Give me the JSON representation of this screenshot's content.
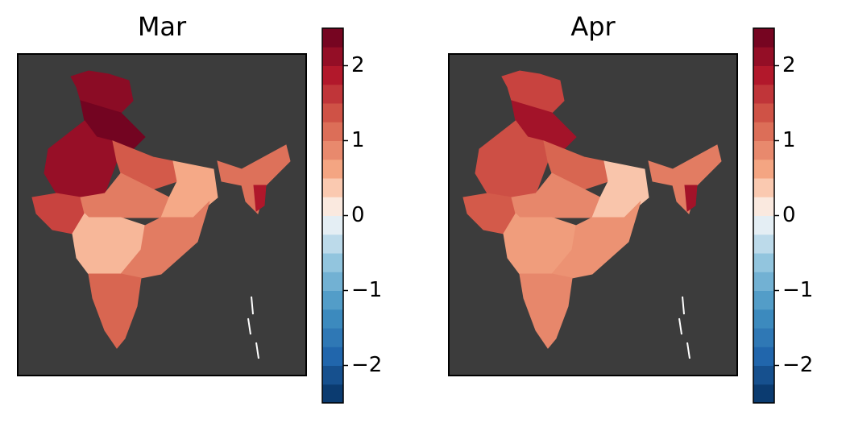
{
  "maps": [
    {
      "title": "Mar",
      "clim": [
        -2.5,
        2.5
      ],
      "ticks": [
        {
          "value": -2,
          "label": "−2"
        },
        {
          "value": -1,
          "label": "−1"
        },
        0,
        1,
        2
      ],
      "regions": [
        2.2,
        2.4,
        2.1,
        1.5,
        1.3,
        1.0,
        0.6,
        0.5,
        1.0,
        1.2,
        1.1,
        1.9
      ]
    },
    {
      "title": "Apr",
      "clim": [
        -2.5,
        2.5
      ],
      "ticks": [
        {
          "value": -2,
          "label": "−2"
        },
        {
          "value": -1,
          "label": "−1"
        },
        0,
        1,
        2
      ],
      "regions": [
        1.5,
        2.0,
        1.4,
        1.3,
        1.2,
        0.9,
        0.4,
        0.7,
        0.8,
        0.9,
        1.0,
        2.0
      ]
    }
  ]
}
